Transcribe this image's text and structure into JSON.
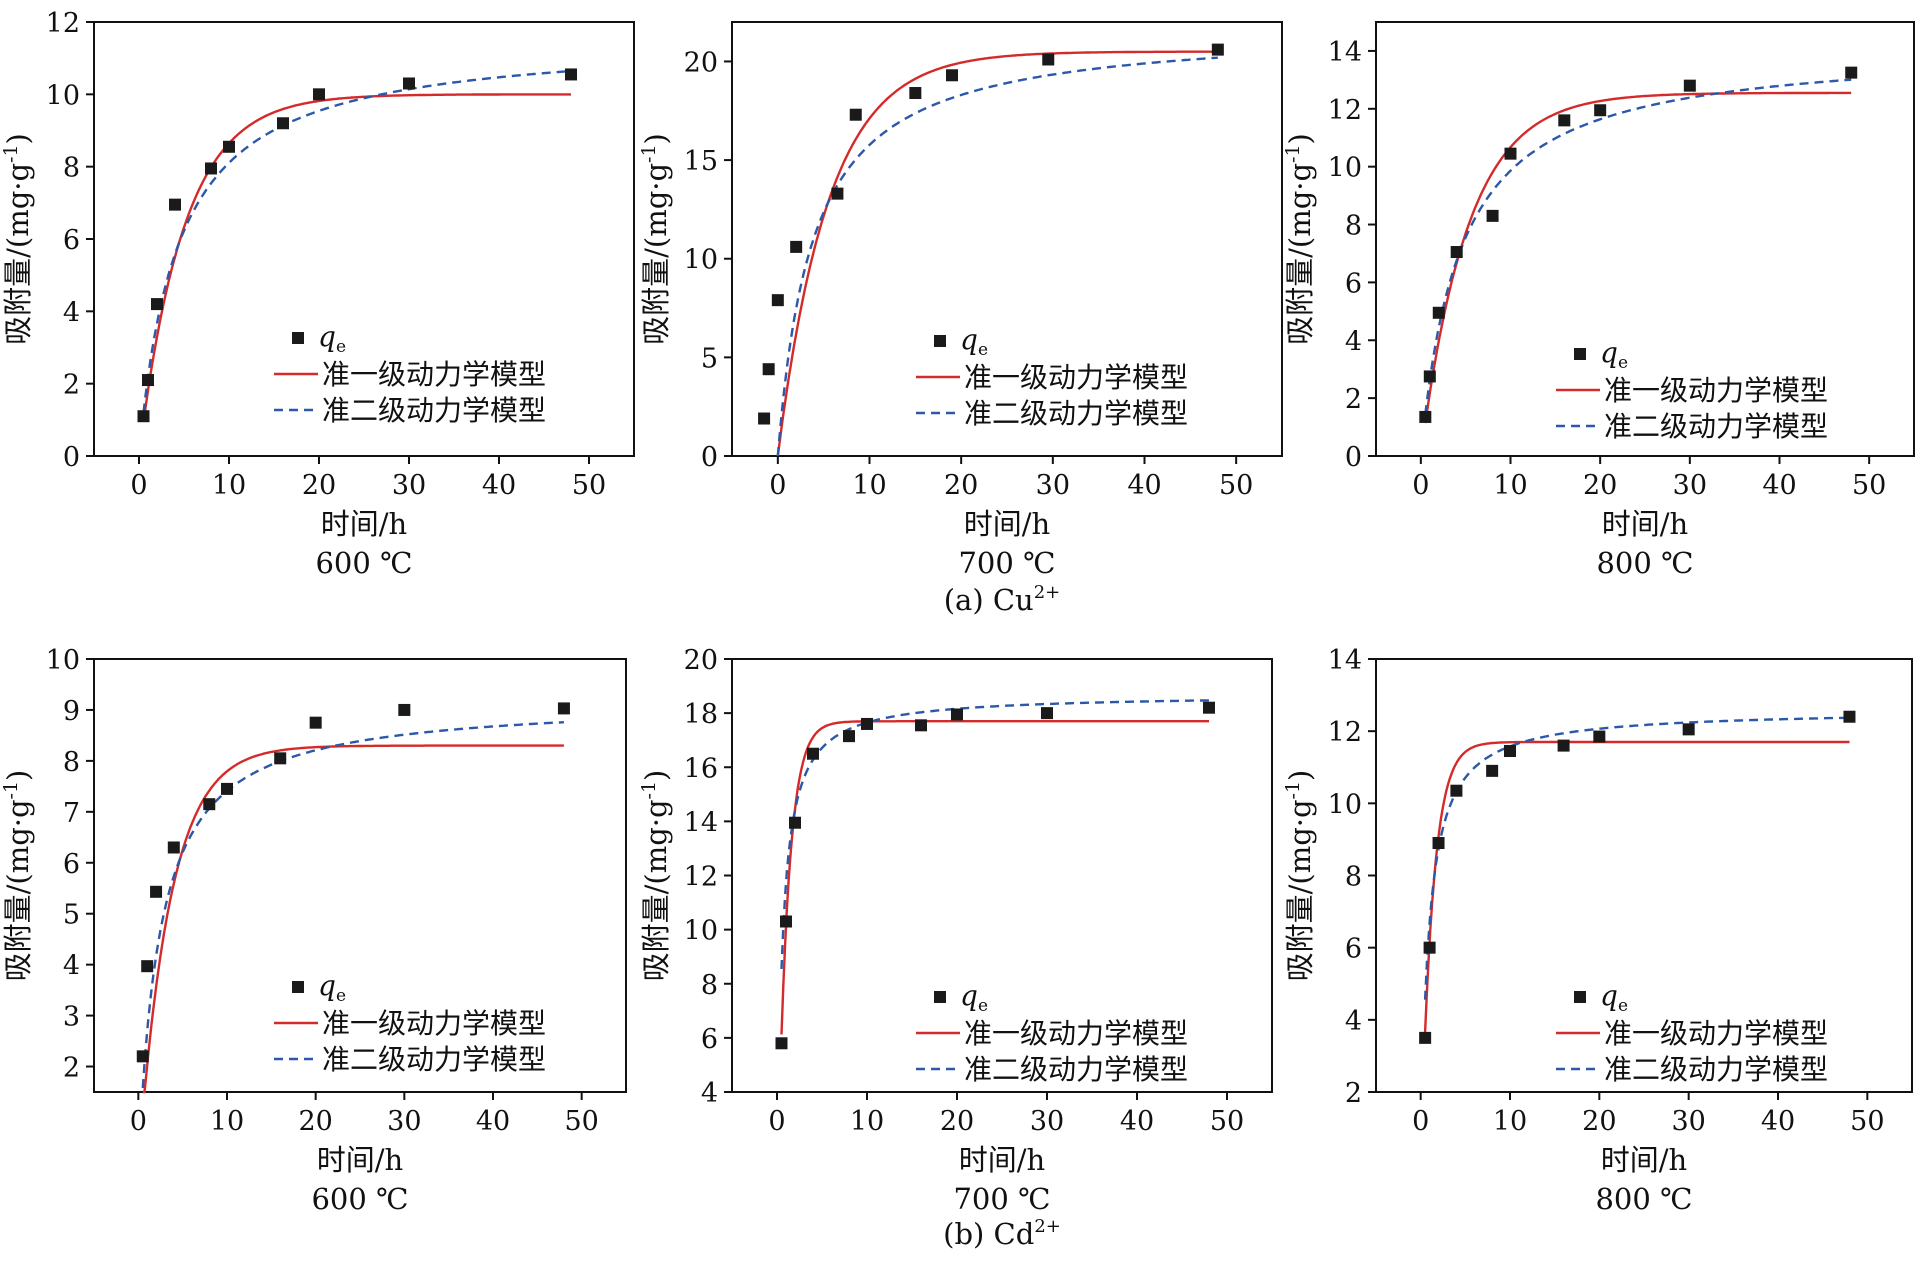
{
  "figure": {
    "row_captions": [
      {
        "prefix": "(a) Cu",
        "sup": "2+"
      },
      {
        "prefix": "(b) Cd",
        "sup": "2+"
      }
    ]
  },
  "colors": {
    "pfo": "#d42a2a",
    "pso": "#2b58a8",
    "points": "#1a1a1a"
  },
  "legend": {
    "qe_symbol": "q",
    "qe_sub": "e",
    "pfo": "准一级动力学模型",
    "pso": "准二级动力学模型"
  },
  "chart_data": [
    {
      "type": "scatter",
      "ion": "Cu2+",
      "temp_label": "600 ℃",
      "xlabel": "时间/h",
      "ylabel": "吸附量/(mg·g-1)",
      "xlim": [
        -5,
        55
      ],
      "ylim": [
        0,
        12
      ],
      "xticks": [
        0,
        10,
        20,
        30,
        40,
        50
      ],
      "yticks": [
        0,
        2,
        4,
        6,
        8,
        10,
        12
      ],
      "qe": {
        "x": [
          0.5,
          1,
          2,
          4,
          8,
          10,
          16,
          20,
          30,
          48
        ],
        "y": [
          1.1,
          2.1,
          4.2,
          6.95,
          7.95,
          8.55,
          9.2,
          10.0,
          10.3,
          10.55
        ]
      },
      "pfo": {
        "qe": 10.0,
        "k": 0.2,
        "x0": 0.5,
        "x1": 48
      },
      "pso": {
        "qe": 11.6,
        "k": 0.02,
        "x0": 0.5,
        "x1": 48
      }
    },
    {
      "type": "scatter",
      "ion": "Cu2+",
      "temp_label": "700 ℃",
      "xlabel": "时间/h",
      "ylabel": "吸附量/(mg·g-1)",
      "xlim": [
        -5,
        55
      ],
      "ylim": [
        0,
        22
      ],
      "xticks": [
        0,
        10,
        20,
        30,
        40,
        50
      ],
      "yticks": [
        0,
        5,
        10,
        15,
        20
      ],
      "qe": {
        "x": [
          -1.5,
          -1,
          0,
          2,
          6.5,
          8.5,
          15,
          19,
          29.5,
          48
        ],
        "y": [
          1.9,
          4.4,
          7.9,
          10.6,
          13.3,
          17.3,
          18.4,
          19.3,
          20.1,
          20.6
        ]
      },
      "pfo": {
        "qe": 20.5,
        "k": 0.18,
        "x0": 0,
        "x1": 48
      },
      "pso": {
        "qe": 21.8,
        "k": 0.012,
        "x0": 0,
        "x1": 48
      }
    },
    {
      "type": "scatter",
      "ion": "Cu2+",
      "temp_label": "800 ℃",
      "xlabel": "时间/h",
      "ylabel": "吸附量/(mg·g-1)",
      "xlim": [
        -5,
        55
      ],
      "ylim": [
        0,
        15
      ],
      "xticks": [
        0,
        10,
        20,
        30,
        40,
        50
      ],
      "yticks": [
        0,
        2,
        4,
        6,
        8,
        10,
        12,
        14
      ],
      "qe": {
        "x": [
          0.5,
          1,
          2,
          4,
          8,
          10,
          16,
          20,
          30,
          48
        ],
        "y": [
          1.35,
          2.75,
          4.95,
          7.05,
          8.3,
          10.45,
          11.6,
          11.95,
          12.8,
          13.25
        ]
      },
      "pfo": {
        "qe": 12.55,
        "k": 0.19,
        "x0": 0.5,
        "x1": 48
      },
      "pso": {
        "qe": 14.2,
        "k": 0.016,
        "x0": 0.5,
        "x1": 48
      }
    },
    {
      "type": "scatter",
      "ion": "Cd2+",
      "temp_label": "600 ℃",
      "xlabel": "时间/h",
      "ylabel": "吸附量/(mg·g-1)",
      "xlim": [
        -5,
        55
      ],
      "ylim": [
        1.5,
        10
      ],
      "xticks": [
        0,
        10,
        20,
        30,
        40,
        50
      ],
      "yticks": [
        2,
        3,
        4,
        5,
        6,
        7,
        8,
        9,
        10
      ],
      "qe": {
        "x": [
          0.5,
          1,
          2,
          4,
          8,
          10,
          16,
          20,
          30,
          48
        ],
        "y": [
          2.2,
          3.97,
          5.43,
          6.3,
          7.15,
          7.45,
          8.05,
          8.75,
          9.0,
          9.03
        ]
      },
      "pfo": {
        "qe": 8.3,
        "k": 0.28,
        "x0": 0.5,
        "x1": 48
      },
      "pso": {
        "qe": 9.2,
        "k": 0.045,
        "x0": 0.5,
        "x1": 48
      }
    },
    {
      "type": "scatter",
      "ion": "Cd2+",
      "temp_label": "700 ℃",
      "xlabel": "时间/h",
      "ylabel": "吸附量/(mg·g-1)",
      "xlim": [
        -5,
        55
      ],
      "ylim": [
        4,
        20
      ],
      "xticks": [
        0,
        10,
        20,
        30,
        40,
        50
      ],
      "yticks": [
        4,
        6,
        8,
        10,
        12,
        14,
        16,
        18,
        20
      ],
      "qe": {
        "x": [
          0.5,
          1,
          2,
          4,
          8,
          10,
          16,
          20,
          30,
          48
        ],
        "y": [
          5.8,
          10.3,
          13.95,
          16.5,
          17.15,
          17.6,
          17.55,
          17.95,
          18.0,
          18.2
        ]
      },
      "pfo": {
        "qe": 17.7,
        "k": 0.85,
        "x0": 0.5,
        "x1": 48
      },
      "pso": {
        "qe": 18.7,
        "k": 0.09,
        "x0": 0.5,
        "x1": 48
      }
    },
    {
      "type": "scatter",
      "ion": "Cd2+",
      "temp_label": "800 ℃",
      "xlabel": "时间/h",
      "ylabel": "吸附量/(mg·g-1)",
      "xlim": [
        -5,
        55
      ],
      "ylim": [
        2,
        14
      ],
      "xticks": [
        0,
        10,
        20,
        30,
        40,
        50
      ],
      "yticks": [
        2,
        4,
        6,
        8,
        10,
        12,
        14
      ],
      "qe": {
        "x": [
          0.5,
          1,
          2,
          4,
          8,
          10,
          16,
          20,
          30,
          48
        ],
        "y": [
          3.5,
          6.0,
          8.9,
          10.35,
          10.9,
          11.45,
          11.6,
          11.85,
          12.05,
          12.4
        ]
      },
      "pfo": {
        "qe": 11.7,
        "k": 0.75,
        "x0": 0.5,
        "x1": 48
      },
      "pso": {
        "qe": 12.6,
        "k": 0.09,
        "x0": 0.5,
        "x1": 48
      }
    }
  ]
}
